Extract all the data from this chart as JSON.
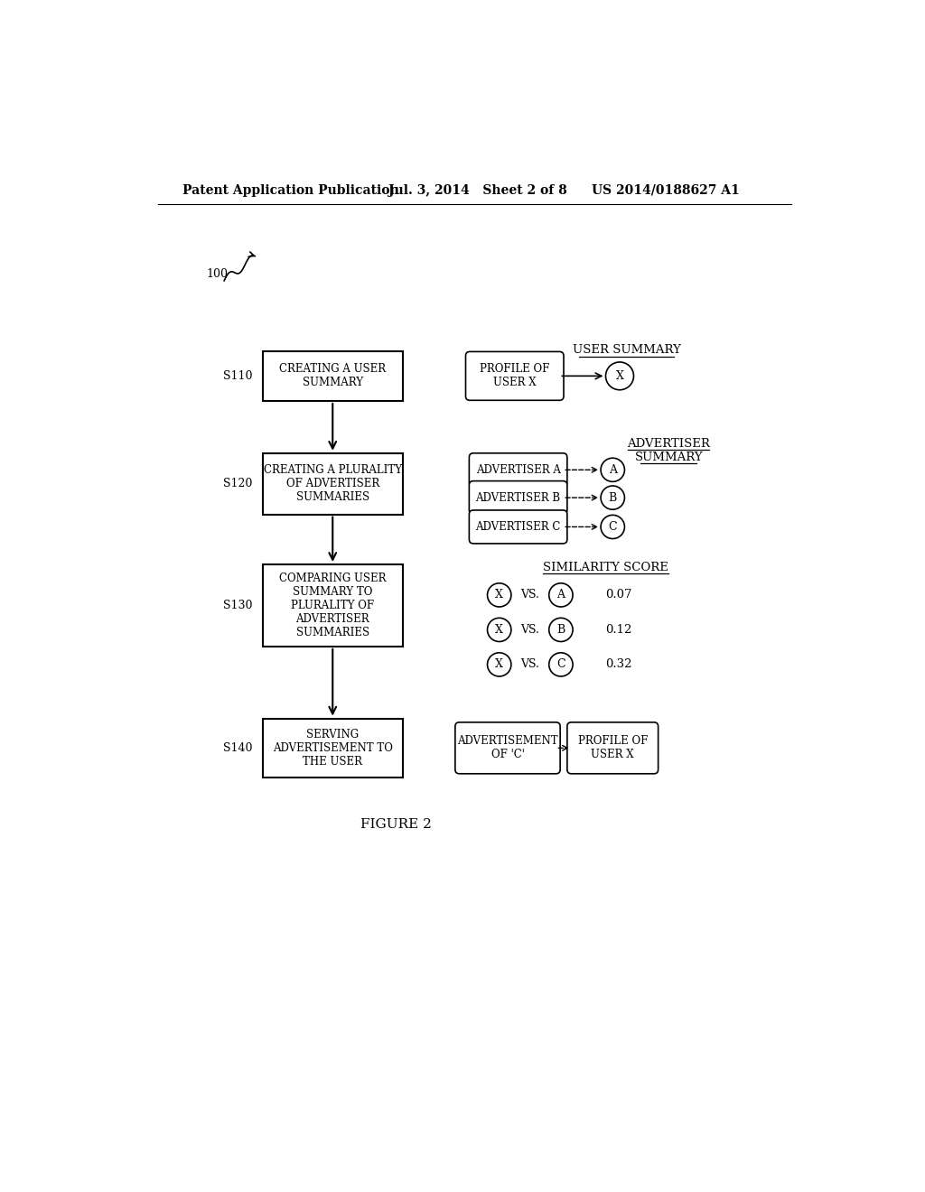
{
  "bg_color": "#ffffff",
  "header_left": "Patent Application Publication",
  "header_mid": "Jul. 3, 2014   Sheet 2 of 8",
  "header_right": "US 2014/0188627 A1",
  "figure_label": "FIGURE 2",
  "ref_num": "100",
  "steps": [
    {
      "label": "S110",
      "text": "CREATING A USER\nSUMMARY"
    },
    {
      "label": "S120",
      "text": "CREATING A PLURALITY\nOF ADVERTISER\nSUMMARIES"
    },
    {
      "label": "S130",
      "text": "COMPARING USER\nSUMMARY TO\nPLURALITY OF\nADVERTISER\nSUMMARIES"
    },
    {
      "label": "S140",
      "text": "SERVING\nADVERTISEMENT TO\nTHE USER"
    }
  ],
  "user_summary_label": "USER SUMMARY",
  "user_summary_box": "PROFILE OF\nUSER X",
  "user_summary_circle": "X",
  "advertiser_summary_line1": "ADVERTISER",
  "advertiser_summary_line2": "SUMMARY",
  "advertisers": [
    {
      "box_text": "ADVERTISER A",
      "circle": "A"
    },
    {
      "box_text": "ADVERTISER B",
      "circle": "B"
    },
    {
      "box_text": "ADVERTISER C",
      "circle": "C"
    }
  ],
  "similarity_label": "SIMILARITY SCORE",
  "comparisons": [
    {
      "left": "X",
      "right": "A",
      "score": "0.07"
    },
    {
      "left": "X",
      "right": "B",
      "score": "0.12"
    },
    {
      "left": "X",
      "right": "C",
      "score": "0.32"
    }
  ],
  "s140_right_box1": "ADVERTISEMENT\nOF 'C'",
  "s140_right_box2": "PROFILE OF\nUSER X"
}
